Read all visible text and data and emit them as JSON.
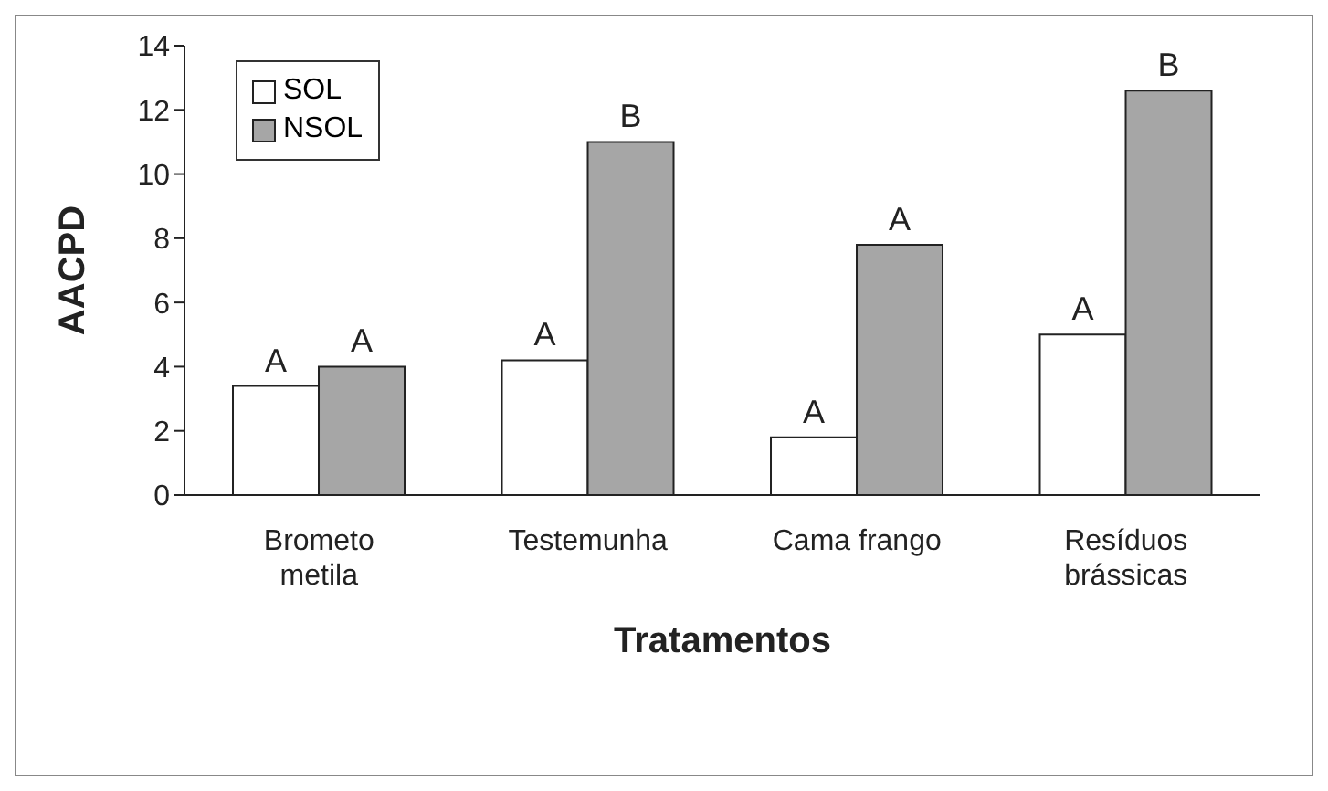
{
  "chart_data": {
    "type": "bar",
    "xlabel": "Tratamentos",
    "ylabel": "AACPD",
    "categories": [
      "Brometo\nmetila",
      "Testemunha",
      "Cama frango",
      "Resíduos\nbrássicas"
    ],
    "series": [
      {
        "name": "SOL",
        "color": "#ffffff",
        "values": [
          3.4,
          4.2,
          1.8,
          5.0
        ],
        "value_labels": [
          "A",
          "A",
          "A",
          "A"
        ]
      },
      {
        "name": "NSOL",
        "color": "#a6a6a6",
        "values": [
          4.0,
          11.0,
          7.8,
          12.6
        ],
        "value_labels": [
          "A",
          "B",
          "A",
          "B"
        ]
      }
    ],
    "ylim": [
      0,
      14
    ],
    "yticks": [
      0,
      2,
      4,
      6,
      8,
      10,
      12,
      14
    ],
    "grid": false,
    "legend": "top left"
  }
}
